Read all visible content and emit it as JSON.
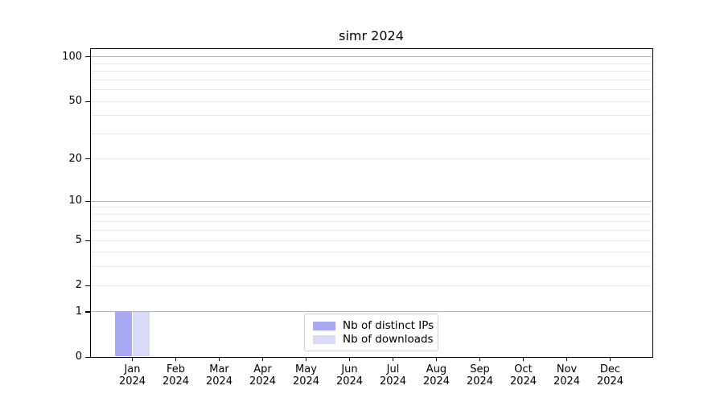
{
  "chart_data": {
    "type": "bar",
    "title": "simr 2024",
    "months": [
      "Jan",
      "Feb",
      "Mar",
      "Apr",
      "May",
      "Jun",
      "Jul",
      "Aug",
      "Sep",
      "Oct",
      "Nov",
      "Dec"
    ],
    "year": "2024",
    "series": [
      {
        "name": "Nb of distinct IPs",
        "color": "#a9a9f3",
        "values": [
          1,
          0,
          0,
          0,
          0,
          0,
          0,
          0,
          0,
          0,
          0,
          0
        ]
      },
      {
        "name": "Nb of downloads",
        "color": "#d9d9f8",
        "values": [
          1,
          0,
          0,
          0,
          0,
          0,
          0,
          0,
          0,
          0,
          0,
          0
        ]
      }
    ],
    "y_scale": "log1p",
    "y_ticks": [
      0,
      1,
      2,
      5,
      10,
      20,
      50,
      100
    ],
    "ylim": [
      0,
      115
    ],
    "grid": {
      "major": [
        1,
        10,
        100
      ],
      "minor": [
        2,
        3,
        4,
        5,
        6,
        7,
        8,
        9,
        20,
        30,
        40,
        50,
        60,
        70,
        80,
        90
      ]
    },
    "legend_position": "lower-center",
    "xlabel": "",
    "ylabel": "",
    "colors": {
      "axis": "#000000",
      "text": "#000000",
      "grid_major": "#b2b2b2",
      "grid_minor": "#e9e9e9",
      "legend_border": "#cfcfcf",
      "background": "#ffffff"
    }
  }
}
